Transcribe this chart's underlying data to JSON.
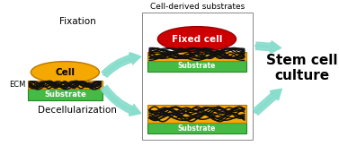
{
  "bg_color": "#ffffff",
  "ecm_color": "#f5a800",
  "ecm_edge_color": "#b87800",
  "cell_color": "#f5a800",
  "cell_edge_color": "#b87800",
  "fixed_cell_color": "#cc0000",
  "fixed_cell_edge_color": "#990000",
  "substrate_color": "#44bb44",
  "substrate_edge_color": "#228822",
  "fiber_color": "#111111",
  "arrow_color": "#88ddcc",
  "box_color": "#888888",
  "title": "Cell-derived substrates",
  "label_fixation": "Fixation",
  "label_decell": "Decellularization",
  "label_cell": "Cell",
  "label_ecm": "ECM",
  "label_substrate": "Substrate",
  "label_fixed_cell": "Fixed cell",
  "label_stem": "Stem cell\nculture",
  "stem_fontsize": 11,
  "label_fontsize": 7.5,
  "small_fontsize": 6.0,
  "title_fontsize": 6.5
}
